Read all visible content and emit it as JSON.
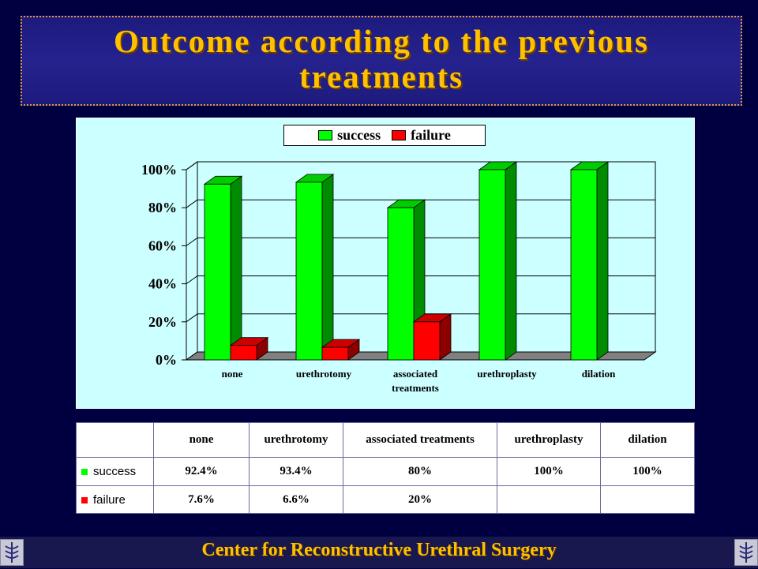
{
  "slide": {
    "title_line1": "Outcome according to the previous",
    "title_line2": "treatments",
    "footer": "Center for Reconstructive Urethral Surgery",
    "logo_icon": "caduceus-logo-icon"
  },
  "colors": {
    "success": "#00ff00",
    "failure": "#ff0000",
    "background": "#000040",
    "title_text": "#ffc000",
    "plot_background": "#ccffff"
  },
  "legend": {
    "success": "success",
    "failure": "failure"
  },
  "chart_data": {
    "type": "bar",
    "categories": [
      "none",
      "urethrotomy",
      "associated treatments",
      "urethroplasty",
      "dilation"
    ],
    "category_lines": [
      [
        "none"
      ],
      [
        "urethrotomy"
      ],
      [
        "associated",
        "treatments"
      ],
      [
        "urethroplasty"
      ],
      [
        "dilation"
      ]
    ],
    "series": [
      {
        "name": "success",
        "values": [
          92.4,
          93.4,
          80,
          100,
          100
        ]
      },
      {
        "name": "failure",
        "values": [
          7.6,
          6.6,
          20,
          null,
          null
        ]
      }
    ],
    "ylim": [
      0,
      100
    ],
    "yticks": [
      "0%",
      "20%",
      "40%",
      "60%",
      "80%",
      "100%"
    ],
    "grid": true,
    "legend_position": "top"
  },
  "table": {
    "headers": [
      "none",
      "urethrotomy",
      "associated treatments",
      "urethroplasty",
      "dilation"
    ],
    "rows": [
      {
        "label": "success",
        "values": [
          "92.4%",
          "93.4%",
          "80%",
          "100%",
          "100%"
        ]
      },
      {
        "label": "failure",
        "values": [
          "7.6%",
          "6.6%",
          "20%",
          "",
          ""
        ]
      }
    ]
  }
}
